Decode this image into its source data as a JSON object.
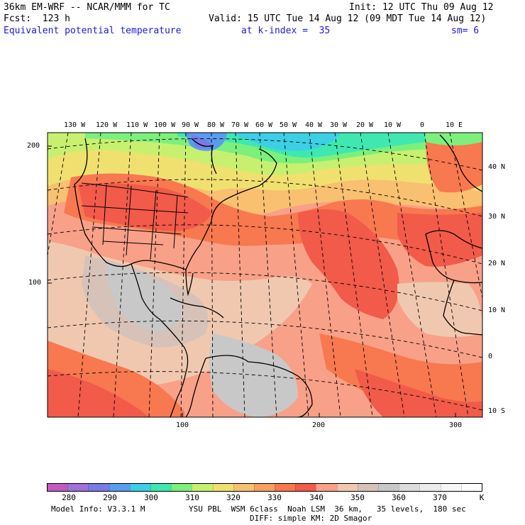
{
  "header": {
    "title": "36km EM-WRF -- NCAR/MMM for TC",
    "init": "Init: 12 UTC Thu 09 Aug 12",
    "fcst": "Fcst:  123 h",
    "valid": "Valid: 15 UTC Tue 14 Aug 12 (09 MDT Tue 14 Aug 12)",
    "field": "Equivalent potential temperature",
    "level": "at k-index =  35",
    "smoothing": "sm= 6"
  },
  "lon_labels": [
    "130 W",
    "120 W",
    "110 W",
    "100 W",
    "90 W",
    "80 W",
    "70 W",
    "60 W",
    "50 W",
    "40 W",
    "30 W",
    "20 W",
    "10 W",
    "0",
    "10 E"
  ],
  "lat_labels": [
    "40 N",
    "30 N",
    "20 N",
    "10 N",
    "0",
    "10 S"
  ],
  "y_grid_labels": [
    "200",
    "100"
  ],
  "x_grid_labels": [
    "100",
    "200",
    "300"
  ],
  "colorbar": {
    "colors": [
      "#c25ac2",
      "#a070d8",
      "#7a7ae6",
      "#5a9cf0",
      "#3ccfe6",
      "#3ee8b0",
      "#7cf07c",
      "#c8f070",
      "#f0e070",
      "#f8c070",
      "#f8a060",
      "#f87850",
      "#f25a4a",
      "#f8a088",
      "#f0c8b0",
      "#d6c2b8",
      "#c8c8c8",
      "#dcdcdc",
      "#ececec",
      "#f6f6f6",
      "#ffffff"
    ],
    "labels": [
      "280",
      "290",
      "300",
      "310",
      "320",
      "330",
      "340",
      "350",
      "360",
      "370",
      "K"
    ]
  },
  "footer": {
    "model": "Model Info: V3.3.1 M",
    "physics": "YSU PBL  WSM 6class  Noah LSM  36 km,   35 levels,  180 sec",
    "diff": "DIFF: simple KM: 2D Smagor"
  }
}
